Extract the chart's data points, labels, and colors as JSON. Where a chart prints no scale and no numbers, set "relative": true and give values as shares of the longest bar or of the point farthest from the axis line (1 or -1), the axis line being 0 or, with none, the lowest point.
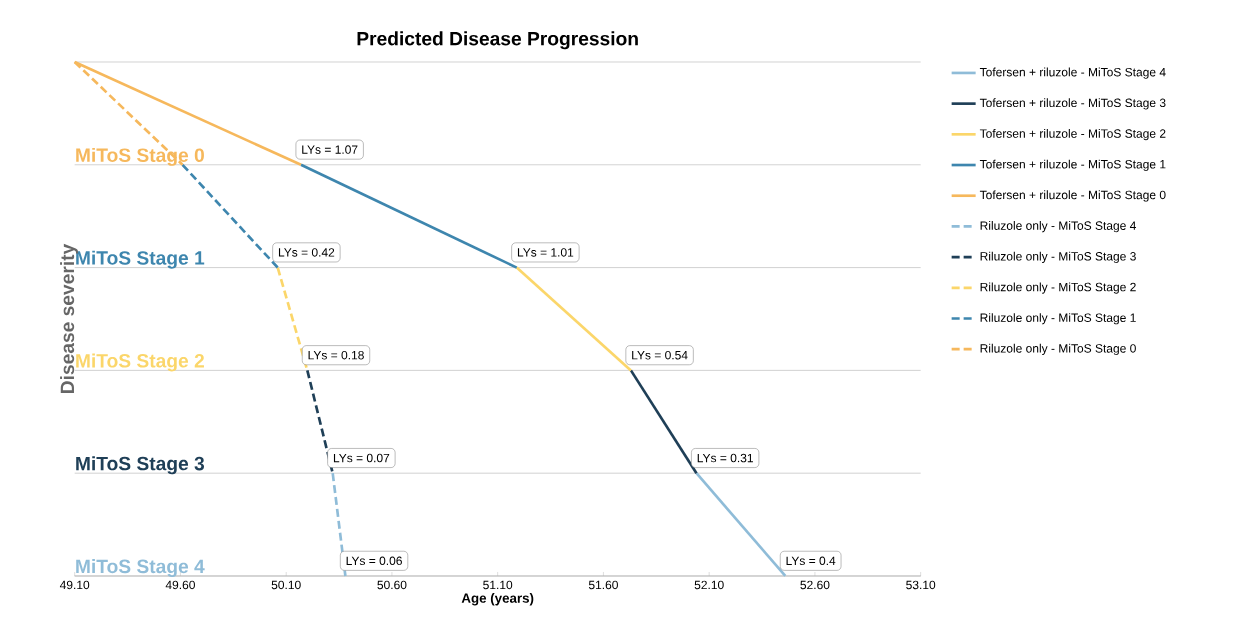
{
  "chart_data": {
    "type": "line",
    "title": "Predicted Disease Progression",
    "xlabel": "Age (years)",
    "ylabel": "Disease severity",
    "relative": true,
    "xlim": [
      49.1,
      53.1
    ],
    "xticks": [
      {
        "value": 49.1,
        "label": "49.10"
      },
      {
        "value": 49.6,
        "label": "49.60"
      },
      {
        "value": 50.1,
        "label": "50.10"
      },
      {
        "value": 50.6,
        "label": "50.60"
      },
      {
        "value": 51.1,
        "label": "51.10"
      },
      {
        "value": 51.6,
        "label": "51.60"
      },
      {
        "value": 52.1,
        "label": "52.10"
      },
      {
        "value": 52.6,
        "label": "52.60"
      },
      {
        "value": 53.1,
        "label": "53.10"
      }
    ],
    "ref_lines": [
      {
        "axis": "y",
        "value": 1
      },
      {
        "axis": "y",
        "value": 0.8,
        "label": "MiToS Stage 0"
      },
      {
        "axis": "y",
        "value": 0.6,
        "label": "MiToS Stage 1"
      },
      {
        "axis": "y",
        "value": 0.4,
        "label": "MiToS Stage 2"
      },
      {
        "axis": "y",
        "value": 0.2,
        "label": "MiToS Stage 3"
      },
      {
        "axis": "y",
        "value": 0,
        "label": "MiToS Stage 4"
      }
    ],
    "legend": "right",
    "marker": "none",
    "series": [
      {
        "name": "Tofersen + riluzole - MiToS Stage 4",
        "color": "#8fbcd8",
        "line_style": "solid",
        "x": [
          52.04,
          52.46
        ],
        "values": [
          0.2,
          0
        ]
      },
      {
        "name": "Tofersen + riluzole - MiToS Stage 3",
        "color": "#1f3f57",
        "line_style": "solid",
        "x": [
          51.73,
          52.04
        ],
        "values": [
          0.4,
          0.2
        ]
      },
      {
        "name": "Tofersen + riluzole - MiToS Stage 2",
        "color": "#fbd66a",
        "line_style": "solid",
        "x": [
          51.19,
          51.73
        ],
        "values": [
          0.6,
          0.4
        ]
      },
      {
        "name": "Tofersen + riluzole - MiToS Stage 1",
        "color": "#3e86ae",
        "line_style": "solid",
        "x": [
          50.17,
          51.19
        ],
        "values": [
          0.8,
          0.6
        ]
      },
      {
        "name": "Tofersen + riluzole - MiToS Stage 0",
        "color": "#f6b85c",
        "line_style": "solid",
        "x": [
          49.1,
          50.17
        ],
        "values": [
          1,
          0.8
        ]
      },
      {
        "name": "Riluzole only - MiToS Stage 4",
        "color": "#8fbcd8",
        "line_style": "dashed",
        "x": [
          50.32,
          50.38
        ],
        "values": [
          0.2,
          0
        ]
      },
      {
        "name": "Riluzole only - MiToS Stage 3",
        "color": "#1f3f57",
        "line_style": "dashed",
        "x": [
          50.2,
          50.32
        ],
        "values": [
          0.4,
          0.2
        ]
      },
      {
        "name": "Riluzole only - MiToS Stage 2",
        "color": "#fbd66a",
        "line_style": "dashed",
        "x": [
          50.06,
          50.2
        ],
        "values": [
          0.6,
          0.4
        ]
      },
      {
        "name": "Riluzole only - MiToS Stage 1",
        "color": "#3e86ae",
        "line_style": "dashed",
        "x": [
          49.61,
          50.06
        ],
        "values": [
          0.8,
          0.6
        ]
      },
      {
        "name": "Riluzole only - MiToS Stage 0",
        "color": "#f6b85c",
        "line_style": "dashed",
        "x": [
          49.1,
          49.61
        ],
        "values": [
          1,
          0.8
        ]
      }
    ],
    "annotations": [
      {
        "text": "LYs = 1.07",
        "x": 50.17,
        "y": 0.8
      },
      {
        "text": "LYs = 1.01",
        "x": 51.19,
        "y": 0.6
      },
      {
        "text": "LYs = 0.54",
        "x": 51.73,
        "y": 0.4
      },
      {
        "text": "LYs = 0.31",
        "x": 52.04,
        "y": 0.2
      },
      {
        "text": "LYs = 0.4",
        "x": 52.46,
        "y": 0
      },
      {
        "text": "LYs = 0.42",
        "x": 50.06,
        "y": 0.6
      },
      {
        "text": "LYs = 0.18",
        "x": 50.2,
        "y": 0.4
      },
      {
        "text": "LYs = 0.07",
        "x": 50.32,
        "y": 0.2
      },
      {
        "text": "LYs = 0.06",
        "x": 50.38,
        "y": 0
      }
    ]
  }
}
